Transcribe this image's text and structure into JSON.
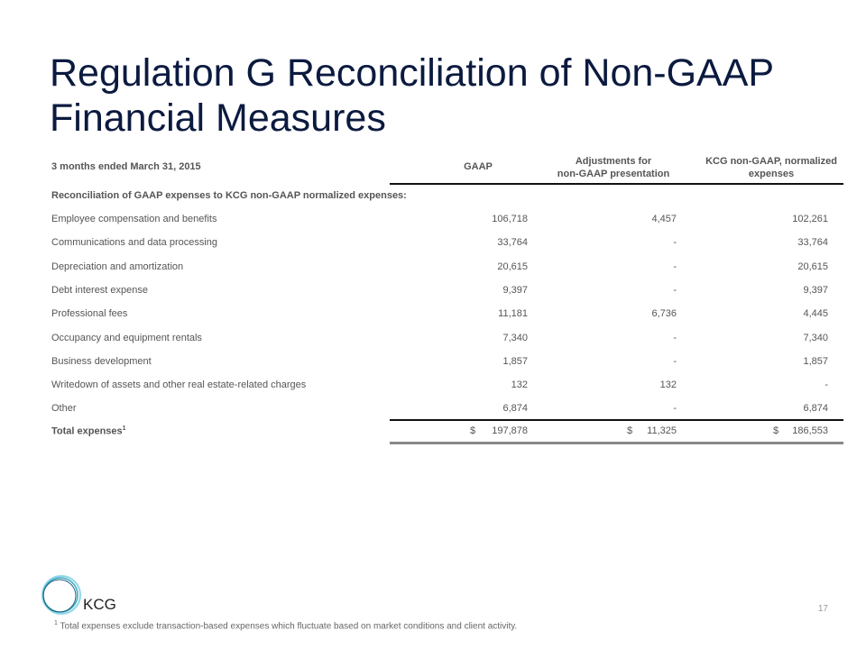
{
  "title": "Regulation G Reconciliation of Non-GAAP Financial Measures",
  "table": {
    "period": "3 months ended March 31, 2015",
    "col_gaap": "GAAP",
    "col_adj_1": "Adjustments for",
    "col_adj_2": "non-GAAP presentation",
    "col_ng_1": "KCG non-GAAP, normalized",
    "col_ng_2": "expenses",
    "section": "Reconciliation of GAAP expenses to KCG non-GAAP normalized expenses:",
    "rows": [
      {
        "label": "Employee compensation and benefits",
        "gaap": "106,718",
        "adj": "4,457",
        "nongaap": "102,261"
      },
      {
        "label": "Communications and data processing",
        "gaap": "33,764",
        "adj": "-",
        "nongaap": "33,764"
      },
      {
        "label": "Depreciation and amortization",
        "gaap": "20,615",
        "adj": "-",
        "nongaap": "20,615"
      },
      {
        "label": "Debt interest expense",
        "gaap": "9,397",
        "adj": "-",
        "nongaap": "9,397"
      },
      {
        "label": "Professional fees",
        "gaap": "11,181",
        "adj": "6,736",
        "nongaap": "4,445"
      },
      {
        "label": "Occupancy and equipment rentals",
        "gaap": "7,340",
        "adj": "-",
        "nongaap": "7,340"
      },
      {
        "label": "Business development",
        "gaap": "1,857",
        "adj": "-",
        "nongaap": "1,857"
      },
      {
        "label": "Writedown of assets and other real estate-related charges",
        "gaap": "132",
        "adj": "132",
        "nongaap": "-"
      },
      {
        "label": "Other",
        "gaap": "6,874",
        "adj": "-",
        "nongaap": "6,874"
      }
    ],
    "total": {
      "label": "Total expenses",
      "sup": "1",
      "currency": "$",
      "gaap": "197,878",
      "adj": "11,325",
      "nongaap": "186,553"
    }
  },
  "logo": {
    "text": "KCG",
    "ring_color": "#5bc0d8"
  },
  "page_number": "17",
  "footnote": {
    "mark": "1",
    "text": "Total expenses exclude transaction-based expenses which fluctuate based on market conditions and client activity."
  }
}
